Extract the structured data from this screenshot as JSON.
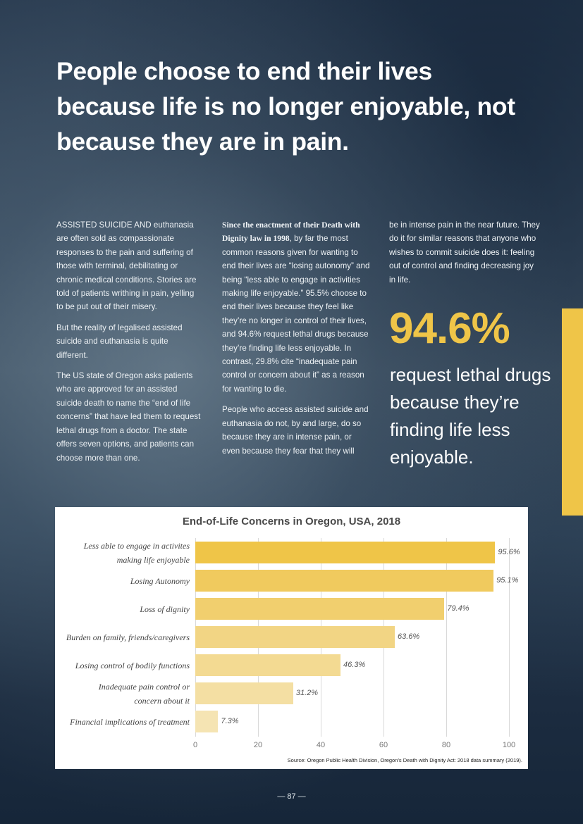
{
  "headline": "People choose to end their lives because life is no longer enjoyable, not because they are in pain.",
  "columns": {
    "col1": [
      "ASSISTED SUICIDE AND euthanasia are often sold as compassionate responses to the pain and suffering of those with terminal, debilitating or chronic medical conditions. Stories are told of patients writhing in pain, yelling to be put out of their misery.",
      "But the reality of legalised assisted suicide and euthanasia is quite different.",
      "The US state of Oregon asks patients who are approved for an assisted suicide death to name the “end of life concerns” that have led them to request lethal drugs from a doctor. The state offers seven options, and patients can choose more than one."
    ],
    "col2_lead_bold": "Since the enactment of their Death with Dignity law in 1998",
    "col2_p1_rest": ", by far the most common reasons given for wanting to end their lives are “losing autonomy” and being “less able to engage in activities making life enjoyable.” 95.5% choose to end their lives because they feel like they’re no longer in control of their lives, and 94.6% request lethal drugs because they’re finding life less enjoyable. In contrast, 29.8% cite “inadequate pain control or concern about it” as a reason for wanting to die.",
    "col2_p2": "People who access assisted suicide and euthanasia do not, by and large, do so because they are in intense pain, or even because they fear that they will",
    "col3": "be in intense pain in the near future. They do it for similar reasons that anyone who wishes to commit suicide does it: feeling out of control and finding decreasing joy in life."
  },
  "callout": {
    "stat": "94.6%",
    "caption": "request lethal drugs because they’re finding life less enjoyable."
  },
  "colors": {
    "accent": "#efc548",
    "background": "#34495e"
  },
  "chart_data": {
    "type": "bar",
    "orientation": "horizontal",
    "title": "End-of-Life Concerns in Oregon, USA, 2018",
    "categories": [
      "Less able to engage in activites making life enjoyable",
      "Losing Autonomy",
      "Loss of dignity",
      "Burden on family, friends/caregivers",
      "Losing control of bodily functions",
      "Inadequate pain control or concern about it",
      "Financial implications of treatment"
    ],
    "category_lines": [
      [
        "Less able to engage in activites",
        "making life enjoyable"
      ],
      [
        "Losing Autonomy"
      ],
      [
        "Loss of dignity"
      ],
      [
        "Burden on family, friends/caregivers"
      ],
      [
        "Losing control of bodily functions"
      ],
      [
        "Inadequate pain control or",
        "concern about it"
      ],
      [
        "Financial implications of treatment"
      ]
    ],
    "values": [
      95.6,
      95.1,
      79.4,
      63.6,
      46.3,
      31.2,
      7.3
    ],
    "value_labels": [
      "95.6%",
      "95.1%",
      "79.4%",
      "63.6%",
      "46.3%",
      "31.2%",
      "7.3%"
    ],
    "bar_colors": [
      "#efc548",
      "#f0ca5e",
      "#f1cf6e",
      "#f2d584",
      "#f3da92",
      "#f4dfa3",
      "#f5e4b3"
    ],
    "xlabel": "",
    "ylabel": "",
    "xlim": [
      0,
      100
    ],
    "xticks": [
      0,
      20,
      40,
      60,
      80,
      100
    ],
    "grid": true,
    "legend": null,
    "source": "Source: Oregon Public Health Division, Oregon’s Death with Dignity Act: 2018 data summary (2019)."
  },
  "page_number": "— 87 —"
}
